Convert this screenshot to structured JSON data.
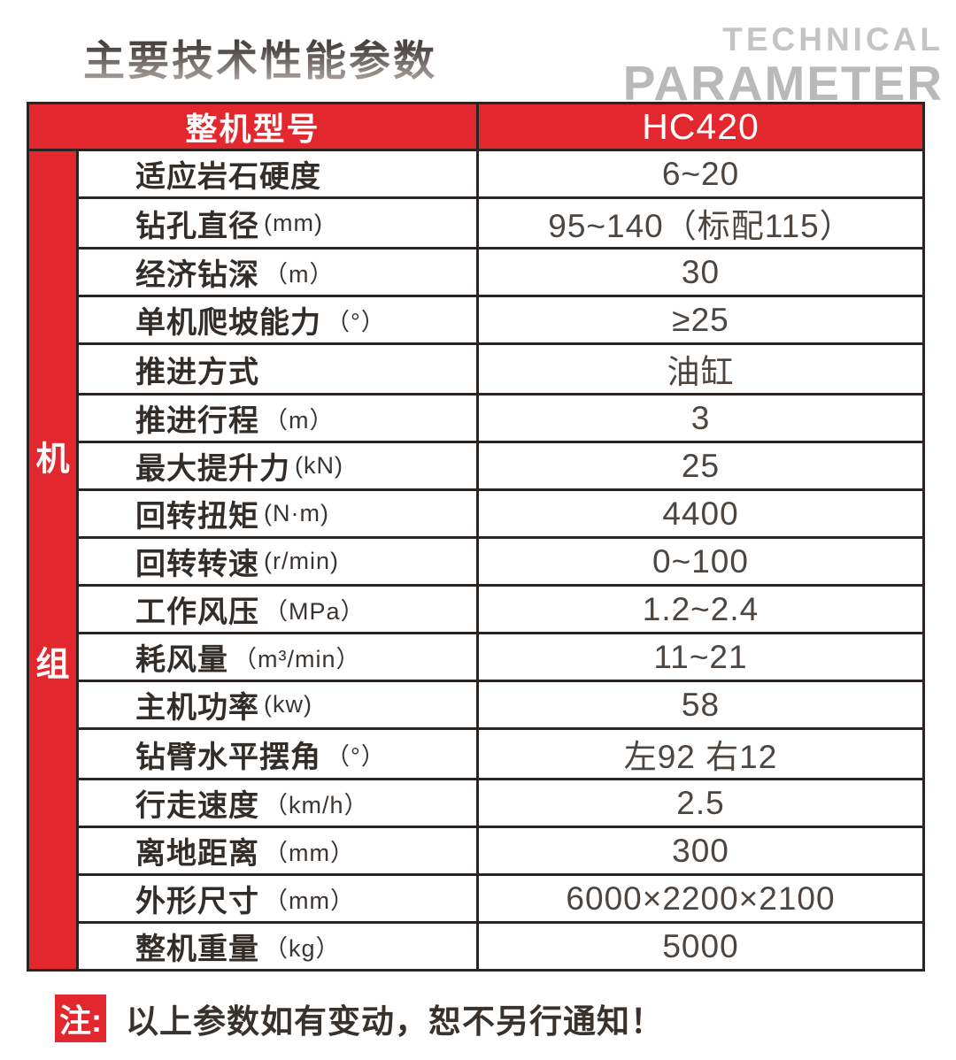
{
  "page": {
    "title_cn": "主要技术性能参数",
    "title_en_line1": "TECHNICAL",
    "title_en_line2": "PARAMETER"
  },
  "table": {
    "header": {
      "model_label": "整机型号",
      "model_value": "HC420"
    },
    "sidebar": {
      "char1": "机",
      "char2": "组"
    },
    "rows": [
      {
        "name": "适应岩石硬度",
        "unit": "",
        "value": "6~20"
      },
      {
        "name": "钻孔直径",
        "unit": "(mm)",
        "value": "95~140（标配115）"
      },
      {
        "name": "经济钻深",
        "unit": "（m）",
        "value": "30"
      },
      {
        "name": "单机爬坡能力",
        "unit": "（°）",
        "value": "≥25"
      },
      {
        "name": "推进方式",
        "unit": "",
        "value": "油缸"
      },
      {
        "name": "推进行程",
        "unit": "（m）",
        "value": "3"
      },
      {
        "name": "最大提升力",
        "unit": "(kN)",
        "value": "25"
      },
      {
        "name": "回转扭矩",
        "unit": "(N·m)",
        "value": "4400"
      },
      {
        "name": "回转转速",
        "unit": "(r/min)",
        "value": "0~100"
      },
      {
        "name": "工作风压",
        "unit": "（MPa）",
        "value": "1.2~2.4"
      },
      {
        "name": "耗风量",
        "unit": "（m³/min）",
        "value": "11~21"
      },
      {
        "name": "主机功率",
        "unit": "(kw)",
        "value": "58"
      },
      {
        "name": "钻臂水平摆角",
        "unit": "（°）",
        "value": "左92 右12"
      },
      {
        "name": "行走速度",
        "unit": "（km/h）",
        "value": "2.5"
      },
      {
        "name": "离地距离",
        "unit": "（mm）",
        "value": "300"
      },
      {
        "name": "外形尺寸",
        "unit": "（mm）",
        "value": "6000×2200×2100"
      },
      {
        "name": "整机重量",
        "unit": "（kg）",
        "value": "5000"
      }
    ]
  },
  "footnote": {
    "tag": "注:",
    "text": "以上参数如有变动，恕不另行通知！"
  },
  "colors": {
    "accent_red": "#e2282e",
    "grid_line": "#2a2523",
    "title_gray": "#bdbdbd"
  }
}
